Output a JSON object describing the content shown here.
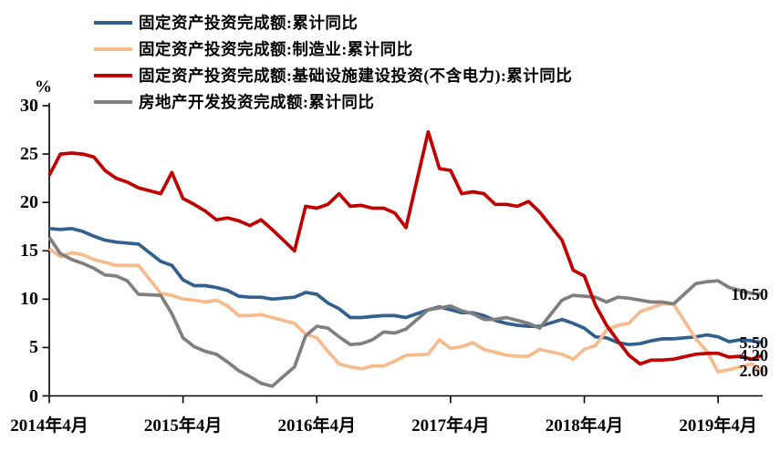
{
  "chart_data": {
    "type": "line",
    "title": "",
    "unit_label": "%",
    "grid": false,
    "legend_position": "top-left",
    "y_axis": {
      "min": 0,
      "max": 30,
      "tick_interval": 5,
      "ticks": [
        0,
        5,
        10,
        15,
        20,
        25,
        30
      ]
    },
    "x_axis": {
      "start_month": "2014-04",
      "end_month": "2019-08",
      "labels": [
        "2014年4月",
        "2015年4月",
        "2016年4月",
        "2017年4月",
        "2018年4月",
        "2019年4月"
      ],
      "tick_months": [
        "2014-04",
        "2015-04",
        "2016-04",
        "2017-04",
        "2018-04",
        "2019-04"
      ]
    },
    "axis_color": "#000000",
    "series": [
      {
        "name": "固定资产投资完成额:累计同比",
        "color": "#31608E",
        "end_label": "5.50",
        "end_value": 5.5,
        "points": [
          [
            "2014-04",
            17.3
          ],
          [
            "2014-05",
            17.2
          ],
          [
            "2014-06",
            17.3
          ],
          [
            "2014-07",
            17.0
          ],
          [
            "2014-08",
            16.5
          ],
          [
            "2014-09",
            16.1
          ],
          [
            "2014-10",
            15.9
          ],
          [
            "2014-11",
            15.8
          ],
          [
            "2014-12",
            15.7
          ],
          [
            "2015-02",
            13.9
          ],
          [
            "2015-03",
            13.5
          ],
          [
            "2015-04",
            12.0
          ],
          [
            "2015-05",
            11.4
          ],
          [
            "2015-06",
            11.4
          ],
          [
            "2015-07",
            11.2
          ],
          [
            "2015-08",
            10.9
          ],
          [
            "2015-09",
            10.3
          ],
          [
            "2015-10",
            10.2
          ],
          [
            "2015-11",
            10.2
          ],
          [
            "2015-12",
            10.0
          ],
          [
            "2016-02",
            10.2
          ],
          [
            "2016-03",
            10.7
          ],
          [
            "2016-04",
            10.5
          ],
          [
            "2016-05",
            9.6
          ],
          [
            "2016-06",
            9.0
          ],
          [
            "2016-07",
            8.1
          ],
          [
            "2016-08",
            8.1
          ],
          [
            "2016-09",
            8.2
          ],
          [
            "2016-10",
            8.3
          ],
          [
            "2016-11",
            8.3
          ],
          [
            "2016-12",
            8.1
          ],
          [
            "2017-02",
            8.9
          ],
          [
            "2017-03",
            9.2
          ],
          [
            "2017-04",
            8.9
          ],
          [
            "2017-05",
            8.6
          ],
          [
            "2017-06",
            8.6
          ],
          [
            "2017-07",
            8.3
          ],
          [
            "2017-08",
            7.8
          ],
          [
            "2017-09",
            7.5
          ],
          [
            "2017-10",
            7.3
          ],
          [
            "2017-11",
            7.2
          ],
          [
            "2017-12",
            7.2
          ],
          [
            "2018-02",
            7.9
          ],
          [
            "2018-03",
            7.5
          ],
          [
            "2018-04",
            7.0
          ],
          [
            "2018-05",
            6.1
          ],
          [
            "2018-06",
            6.0
          ],
          [
            "2018-07",
            5.5
          ],
          [
            "2018-08",
            5.3
          ],
          [
            "2018-09",
            5.4
          ],
          [
            "2018-10",
            5.7
          ],
          [
            "2018-11",
            5.9
          ],
          [
            "2018-12",
            5.9
          ],
          [
            "2019-02",
            6.1
          ],
          [
            "2019-03",
            6.3
          ],
          [
            "2019-04",
            6.1
          ],
          [
            "2019-05",
            5.6
          ],
          [
            "2019-06",
            5.8
          ],
          [
            "2019-07",
            5.7
          ],
          [
            "2019-08",
            5.5
          ]
        ]
      },
      {
        "name": "固定资产投资完成额:制造业:累计同比",
        "color": "#F7BA8C",
        "end_label": "2.60",
        "end_value": 2.6,
        "points": [
          [
            "2014-04",
            15.2
          ],
          [
            "2014-05",
            14.4
          ],
          [
            "2014-06",
            14.8
          ],
          [
            "2014-07",
            14.6
          ],
          [
            "2014-08",
            14.1
          ],
          [
            "2014-09",
            13.8
          ],
          [
            "2014-10",
            13.5
          ],
          [
            "2014-11",
            13.5
          ],
          [
            "2014-12",
            13.5
          ],
          [
            "2015-02",
            10.6
          ],
          [
            "2015-03",
            10.4
          ],
          [
            "2015-04",
            10.0
          ],
          [
            "2015-05",
            9.9
          ],
          [
            "2015-06",
            9.7
          ],
          [
            "2015-07",
            9.9
          ],
          [
            "2015-08",
            9.3
          ],
          [
            "2015-09",
            8.3
          ],
          [
            "2015-10",
            8.3
          ],
          [
            "2015-11",
            8.4
          ],
          [
            "2015-12",
            8.1
          ],
          [
            "2016-02",
            7.5
          ],
          [
            "2016-03",
            6.4
          ],
          [
            "2016-04",
            6.0
          ],
          [
            "2016-05",
            4.6
          ],
          [
            "2016-06",
            3.3
          ],
          [
            "2016-07",
            3.0
          ],
          [
            "2016-08",
            2.8
          ],
          [
            "2016-09",
            3.1
          ],
          [
            "2016-10",
            3.1
          ],
          [
            "2016-11",
            3.6
          ],
          [
            "2016-12",
            4.2
          ],
          [
            "2017-02",
            4.3
          ],
          [
            "2017-03",
            5.8
          ],
          [
            "2017-04",
            4.9
          ],
          [
            "2017-05",
            5.1
          ],
          [
            "2017-06",
            5.5
          ],
          [
            "2017-07",
            4.8
          ],
          [
            "2017-08",
            4.5
          ],
          [
            "2017-09",
            4.2
          ],
          [
            "2017-10",
            4.1
          ],
          [
            "2017-11",
            4.1
          ],
          [
            "2017-12",
            4.8
          ],
          [
            "2018-02",
            4.3
          ],
          [
            "2018-03",
            3.8
          ],
          [
            "2018-04",
            4.8
          ],
          [
            "2018-05",
            5.2
          ],
          [
            "2018-06",
            6.8
          ],
          [
            "2018-07",
            7.3
          ],
          [
            "2018-08",
            7.5
          ],
          [
            "2018-09",
            8.7
          ],
          [
            "2018-10",
            9.1
          ],
          [
            "2018-11",
            9.5
          ],
          [
            "2018-12",
            9.5
          ],
          [
            "2019-02",
            5.9
          ],
          [
            "2019-03",
            4.6
          ],
          [
            "2019-04",
            2.5
          ],
          [
            "2019-05",
            2.7
          ],
          [
            "2019-06",
            3.0
          ],
          [
            "2019-07",
            3.3
          ],
          [
            "2019-08",
            2.6
          ]
        ]
      },
      {
        "name": "固定资产投资完成额:基础设施建设投资(不含电力):累计同比",
        "color": "#C00000",
        "end_label": "4.20",
        "end_value": 4.2,
        "points": [
          [
            "2014-04",
            22.8
          ],
          [
            "2014-05",
            25.0
          ],
          [
            "2014-06",
            25.1
          ],
          [
            "2014-07",
            25.0
          ],
          [
            "2014-08",
            24.7
          ],
          [
            "2014-09",
            23.3
          ],
          [
            "2014-10",
            22.5
          ],
          [
            "2014-11",
            22.1
          ],
          [
            "2014-12",
            21.5
          ],
          [
            "2015-02",
            20.9
          ],
          [
            "2015-03",
            23.1
          ],
          [
            "2015-04",
            20.4
          ],
          [
            "2015-05",
            19.8
          ],
          [
            "2015-06",
            19.1
          ],
          [
            "2015-07",
            18.2
          ],
          [
            "2015-08",
            18.4
          ],
          [
            "2015-09",
            18.1
          ],
          [
            "2015-10",
            17.6
          ],
          [
            "2015-11",
            18.2
          ],
          [
            "2015-12",
            17.2
          ],
          [
            "2016-02",
            15.0
          ],
          [
            "2016-03",
            19.6
          ],
          [
            "2016-04",
            19.4
          ],
          [
            "2016-05",
            19.8
          ],
          [
            "2016-06",
            20.9
          ],
          [
            "2016-07",
            19.6
          ],
          [
            "2016-08",
            19.7
          ],
          [
            "2016-09",
            19.4
          ],
          [
            "2016-10",
            19.4
          ],
          [
            "2016-11",
            18.9
          ],
          [
            "2016-12",
            17.4
          ],
          [
            "2017-02",
            27.3
          ],
          [
            "2017-03",
            23.5
          ],
          [
            "2017-04",
            23.3
          ],
          [
            "2017-05",
            20.9
          ],
          [
            "2017-06",
            21.1
          ],
          [
            "2017-07",
            20.9
          ],
          [
            "2017-08",
            19.8
          ],
          [
            "2017-09",
            19.8
          ],
          [
            "2017-10",
            19.6
          ],
          [
            "2017-11",
            20.1
          ],
          [
            "2017-12",
            19.0
          ],
          [
            "2018-02",
            16.1
          ],
          [
            "2018-03",
            13.0
          ],
          [
            "2018-04",
            12.4
          ],
          [
            "2018-05",
            9.4
          ],
          [
            "2018-06",
            7.3
          ],
          [
            "2018-07",
            5.7
          ],
          [
            "2018-08",
            4.2
          ],
          [
            "2018-09",
            3.3
          ],
          [
            "2018-10",
            3.7
          ],
          [
            "2018-11",
            3.7
          ],
          [
            "2018-12",
            3.8
          ],
          [
            "2019-02",
            4.3
          ],
          [
            "2019-03",
            4.4
          ],
          [
            "2019-04",
            4.4
          ],
          [
            "2019-05",
            4.0
          ],
          [
            "2019-06",
            4.1
          ],
          [
            "2019-07",
            3.8
          ],
          [
            "2019-08",
            4.2
          ]
        ]
      },
      {
        "name": "房地产开发投资完成额:累计同比",
        "color": "#7F7F7F",
        "end_label": "10.50",
        "end_value": 10.5,
        "points": [
          [
            "2014-04",
            16.4
          ],
          [
            "2014-05",
            14.7
          ],
          [
            "2014-06",
            14.1
          ],
          [
            "2014-07",
            13.7
          ],
          [
            "2014-08",
            13.2
          ],
          [
            "2014-09",
            12.5
          ],
          [
            "2014-10",
            12.4
          ],
          [
            "2014-11",
            11.9
          ],
          [
            "2014-12",
            10.5
          ],
          [
            "2015-02",
            10.4
          ],
          [
            "2015-03",
            8.5
          ],
          [
            "2015-04",
            6.0
          ],
          [
            "2015-05",
            5.1
          ],
          [
            "2015-06",
            4.6
          ],
          [
            "2015-07",
            4.3
          ],
          [
            "2015-08",
            3.5
          ],
          [
            "2015-09",
            2.6
          ],
          [
            "2015-10",
            2.0
          ],
          [
            "2015-11",
            1.3
          ],
          [
            "2015-12",
            1.0
          ],
          [
            "2016-02",
            3.0
          ],
          [
            "2016-03",
            6.2
          ],
          [
            "2016-04",
            7.2
          ],
          [
            "2016-05",
            7.0
          ],
          [
            "2016-06",
            6.1
          ],
          [
            "2016-07",
            5.3
          ],
          [
            "2016-08",
            5.4
          ],
          [
            "2016-09",
            5.8
          ],
          [
            "2016-10",
            6.6
          ],
          [
            "2016-11",
            6.5
          ],
          [
            "2016-12",
            6.9
          ],
          [
            "2017-02",
            8.9
          ],
          [
            "2017-03",
            9.1
          ],
          [
            "2017-04",
            9.3
          ],
          [
            "2017-05",
            8.8
          ],
          [
            "2017-06",
            8.5
          ],
          [
            "2017-07",
            7.9
          ],
          [
            "2017-08",
            7.9
          ],
          [
            "2017-09",
            8.1
          ],
          [
            "2017-10",
            7.8
          ],
          [
            "2017-11",
            7.5
          ],
          [
            "2017-12",
            7.0
          ],
          [
            "2018-02",
            9.9
          ],
          [
            "2018-03",
            10.4
          ],
          [
            "2018-04",
            10.3
          ],
          [
            "2018-05",
            10.2
          ],
          [
            "2018-06",
            9.7
          ],
          [
            "2018-07",
            10.2
          ],
          [
            "2018-08",
            10.1
          ],
          [
            "2018-09",
            9.9
          ],
          [
            "2018-10",
            9.7
          ],
          [
            "2018-11",
            9.7
          ],
          [
            "2018-12",
            9.5
          ],
          [
            "2019-02",
            11.6
          ],
          [
            "2019-03",
            11.8
          ],
          [
            "2019-04",
            11.9
          ],
          [
            "2019-05",
            11.2
          ],
          [
            "2019-06",
            10.9
          ],
          [
            "2019-07",
            10.6
          ],
          [
            "2019-08",
            10.5
          ]
        ]
      }
    ]
  }
}
